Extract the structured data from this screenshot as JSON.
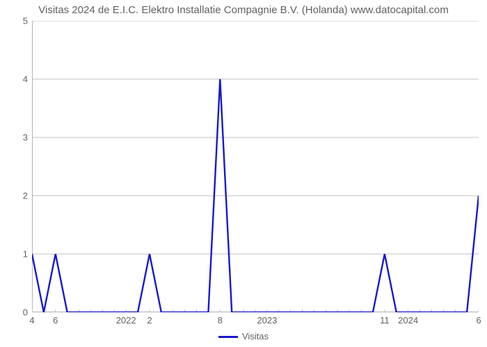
{
  "chart": {
    "type": "line",
    "title": "Visitas 2024 de E.I.C. Elektro Installatie Compagnie B.V. (Holanda) www.datocapital.com",
    "title_fontsize": 15,
    "title_color": "#606060",
    "background_color": "#ffffff",
    "grid_color": "#c0c0c0",
    "axis_color": "#808080",
    "tick_label_color": "#606060",
    "tick_fontsize": 13,
    "line_color": "#1818d0",
    "line_width": 2.4,
    "ylim": [
      0,
      5
    ],
    "yticks": [
      0,
      1,
      2,
      3,
      4,
      5
    ],
    "x_n": 38,
    "xticks": [
      {
        "pos": 0,
        "label": "4"
      },
      {
        "pos": 2,
        "label": "6"
      },
      {
        "pos": 8,
        "label": "2022"
      },
      {
        "pos": 10,
        "label": "2"
      },
      {
        "pos": 16,
        "label": "8"
      },
      {
        "pos": 20,
        "label": "2023"
      },
      {
        "pos": 30,
        "label": "11"
      },
      {
        "pos": 32,
        "label": "2024"
      },
      {
        "pos": 38,
        "label": "6"
      }
    ],
    "xtick_minor_step": 1,
    "series_label": "Visitas",
    "values": [
      1,
      0,
      1,
      0,
      0,
      0,
      0,
      0,
      0,
      0,
      1,
      0,
      0,
      0,
      0,
      0,
      4,
      0,
      0,
      0,
      0,
      0,
      0,
      0,
      0,
      0,
      0,
      0,
      0,
      0,
      1,
      0,
      0,
      0,
      0,
      0,
      0,
      0,
      2
    ]
  }
}
